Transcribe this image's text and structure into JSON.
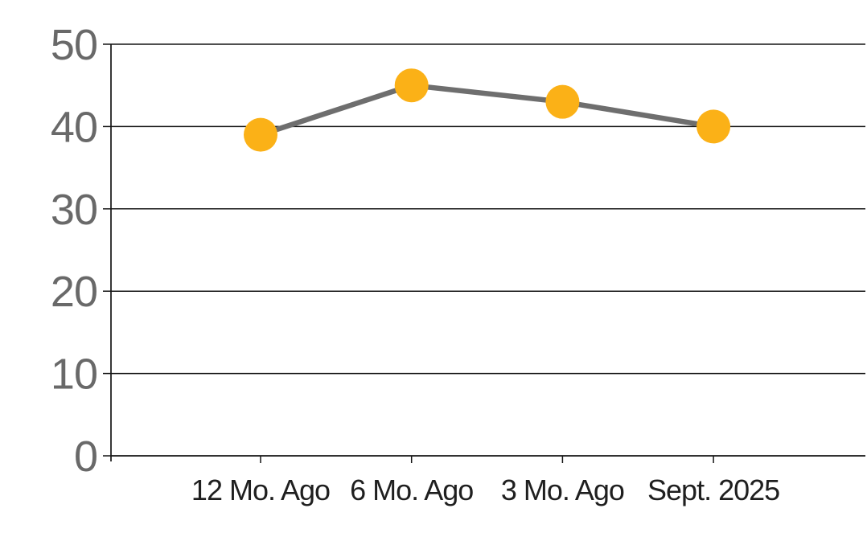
{
  "chart_data": {
    "type": "line",
    "title": "",
    "xlabel": "",
    "ylabel": "",
    "categories": [
      "12 Mo. Ago",
      "6 Mo. Ago",
      "3 Mo. Ago",
      "Sept. 2025"
    ],
    "series": [
      {
        "name": "value",
        "values": [
          39,
          45,
          43,
          40
        ]
      }
    ],
    "yticks": [
      0,
      10,
      20,
      30,
      40,
      50
    ],
    "ylim": [
      0,
      50
    ],
    "grid": true,
    "legend": false,
    "marker_shape": "circle",
    "colors": {
      "marker": "#FBB117",
      "line": "#6E6E6E",
      "axis": "#151515",
      "grid": "#151515",
      "ytick_label": "#696969",
      "xtick_label": "#1F1F1F",
      "background": "#FFFFFF"
    }
  }
}
